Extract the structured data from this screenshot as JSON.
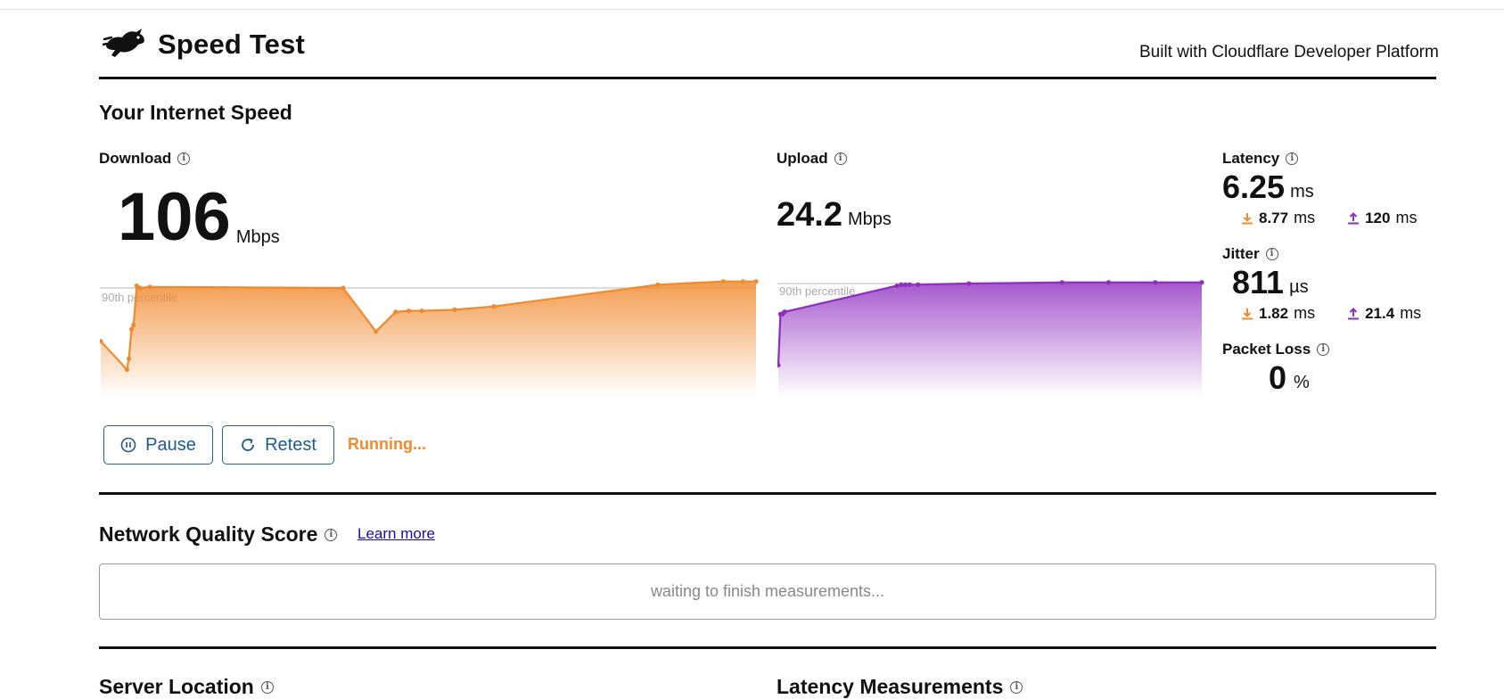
{
  "header": {
    "title": "Speed Test",
    "built_with": "Built with Cloudflare Developer Platform"
  },
  "speed": {
    "section_title": "Your Internet Speed",
    "download": {
      "label": "Download",
      "value": "106",
      "unit": "Mbps"
    },
    "upload": {
      "label": "Upload",
      "value": "24.2",
      "unit": "Mbps"
    },
    "percentile_label": "90th percentile",
    "latency": {
      "label": "Latency",
      "value": "6.25",
      "unit": "ms",
      "down_value": "8.77",
      "down_unit": "ms",
      "up_value": "120",
      "up_unit": "ms"
    },
    "jitter": {
      "label": "Jitter",
      "value": "811",
      "unit": "µs",
      "down_value": "1.82",
      "down_unit": "ms",
      "up_value": "21.4",
      "up_unit": "ms"
    },
    "packet_loss": {
      "label": "Packet Loss",
      "value": "0",
      "unit": "%"
    }
  },
  "controls": {
    "pause_label": "Pause",
    "retest_label": "Retest",
    "status": "Running..."
  },
  "network_quality": {
    "title": "Network Quality Score",
    "learn_more": "Learn more",
    "placeholder": "waiting to finish measurements..."
  },
  "bottom": {
    "server_location": "Server Location",
    "latency_measurements": "Latency Measurements"
  },
  "colors": {
    "download": "#f08a2e",
    "upload": "#8e2fc0",
    "link": "#1a0dab",
    "button": "#1f5a93"
  },
  "chart_data": [
    {
      "type": "area",
      "name": "download",
      "y_relative_to_90th_percentile": [
        0.51,
        0.25,
        0.35,
        0.62,
        0.66,
        1.02,
        1.0,
        1.01,
        1.0,
        0.6,
        0.78,
        0.79,
        0.79,
        0.8,
        0.83,
        1.03,
        1.06,
        1.06,
        1.06
      ],
      "x_fraction": [
        0.0,
        0.04,
        0.043,
        0.047,
        0.05,
        0.055,
        0.06,
        0.075,
        0.37,
        0.42,
        0.45,
        0.47,
        0.49,
        0.54,
        0.6,
        0.85,
        0.95,
        0.98,
        1.0
      ]
    },
    {
      "type": "area",
      "name": "upload",
      "y_relative_to_90th_percentile": [
        0.28,
        0.73,
        0.73,
        0.74,
        0.75,
        0.98,
        0.99,
        0.99,
        0.99,
        0.99,
        1.0,
        1.01,
        1.01,
        1.01,
        1.01
      ],
      "x_fraction": [
        0.0,
        0.005,
        0.01,
        0.012,
        0.015,
        0.28,
        0.29,
        0.3,
        0.31,
        0.33,
        0.45,
        0.67,
        0.78,
        0.89,
        1.0
      ]
    }
  ]
}
